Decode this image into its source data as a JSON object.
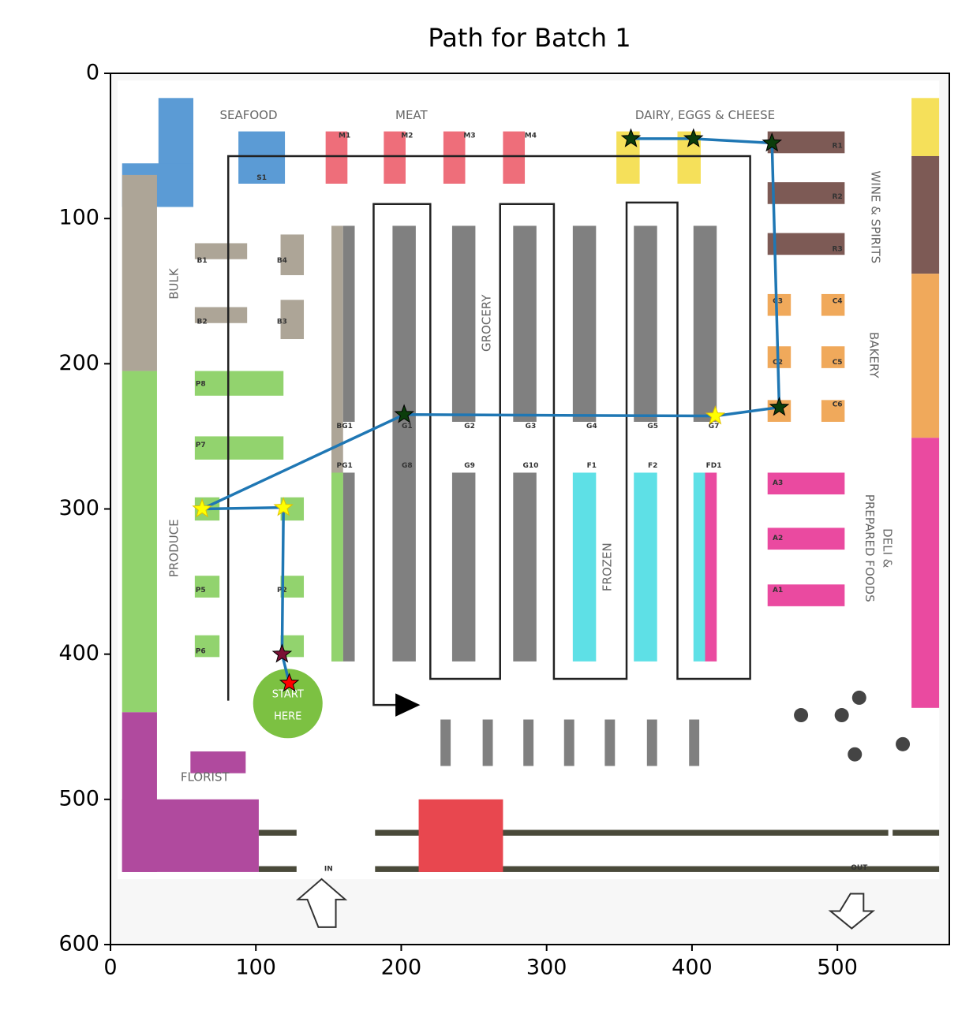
{
  "chart_data": {
    "type": "line",
    "title": "Path for Batch 1",
    "x": [
      123,
      118,
      119,
      63,
      202,
      416,
      460,
      455,
      401,
      358
    ],
    "values": [
      420,
      400,
      299,
      300,
      235,
      236,
      230,
      48,
      45,
      45
    ],
    "color": "#1f77b4",
    "marker": "star",
    "marker_colors": [
      "#ff0000",
      "#7a1034",
      "#ffff00",
      "#ffff00",
      "#0b3d0b",
      "#ffff00",
      "#0b3d0b",
      "#0b3d0b",
      "#0b3d0b",
      "#0b3d0b"
    ],
    "xlim": [
      0,
      577
    ],
    "ylim": [
      600,
      0
    ],
    "xticks": [
      0,
      100,
      200,
      300,
      400,
      500
    ],
    "yticks": [
      0,
      100,
      200,
      300,
      400,
      500,
      600
    ],
    "map_labels": [
      "SEAFOOD",
      "MEAT",
      "DAIRY, EGGS & CHEESE",
      "M1",
      "M2",
      "M3",
      "M4",
      "S1",
      "R1",
      "R2",
      "R3",
      "WINE & SPIRITS",
      "BULK",
      "B1",
      "B4",
      "B2",
      "B3",
      "GROCERY",
      "C3",
      "C4",
      "C2",
      "C5",
      "C6",
      "BAKERY",
      "P8",
      "P7",
      "P5",
      "P2",
      "P6",
      "PRODUCE",
      "BG1",
      "G1",
      "G2",
      "G3",
      "G4",
      "G5",
      "G7",
      "PG1",
      "G8",
      "G9",
      "G10",
      "F1",
      "F2",
      "FD1",
      "FROZEN",
      "A3",
      "A2",
      "A1",
      "DELI &",
      "PREPARED FOODS",
      "START",
      "HERE",
      "FLORIST",
      "IN",
      "OUT"
    ]
  }
}
